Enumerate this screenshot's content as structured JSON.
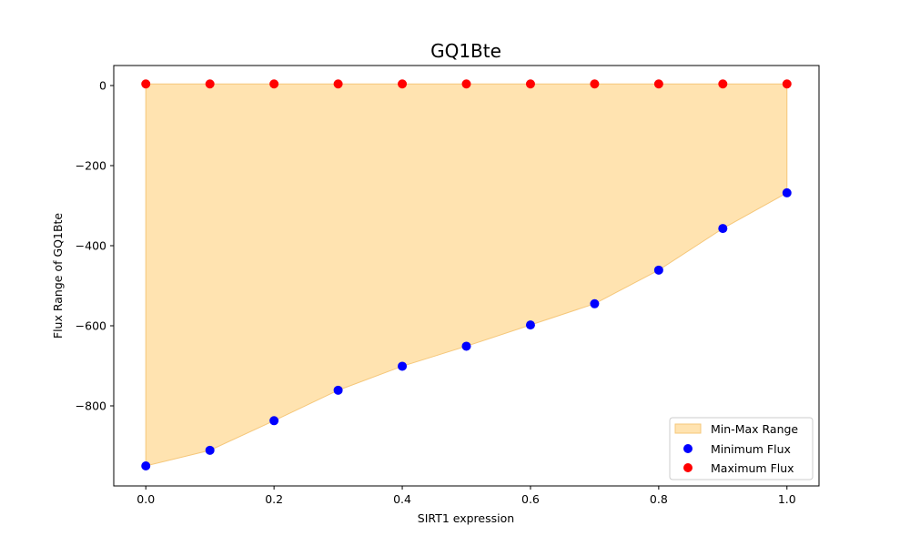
{
  "chart_data": {
    "type": "scatter",
    "title": "GQ1Bte",
    "xlabel": "SIRT1 expression",
    "ylabel": "Flux Range of GQ1Bte",
    "xlim": [
      -0.05,
      1.05
    ],
    "ylim": [
      -1000,
      50
    ],
    "xticks": [
      0.0,
      0.2,
      0.4,
      0.6,
      0.8,
      1.0
    ],
    "xtick_labels": [
      "0.0",
      "0.2",
      "0.4",
      "0.6",
      "0.8",
      "1.0"
    ],
    "yticks": [
      0,
      -200,
      -400,
      -600,
      -800
    ],
    "ytick_labels": [
      "0",
      "−200",
      "−400",
      "−600",
      "−800"
    ],
    "x": [
      0.0,
      0.1,
      0.2,
      0.3,
      0.4,
      0.5,
      0.6,
      0.7,
      0.8,
      0.9,
      1.0
    ],
    "fill": {
      "name": "Min-Max Range",
      "color": "#ffe3b0",
      "edge": "#f5c77a"
    },
    "series": [
      {
        "name": "Minimum Flux",
        "color": "#0000ff",
        "values": [
          -950,
          -911,
          -837,
          -761,
          -701,
          -651,
          -598,
          -545,
          -461,
          -357,
          -268
        ]
      },
      {
        "name": "Maximum Flux",
        "color": "#ff0000",
        "values": [
          4,
          4,
          4,
          4,
          4,
          4,
          4,
          4,
          4,
          4,
          4
        ]
      }
    ],
    "legend": {
      "placement": "lower-right",
      "entries": [
        "Min-Max Range",
        "Minimum Flux",
        "Maximum Flux"
      ]
    },
    "grid": false
  }
}
